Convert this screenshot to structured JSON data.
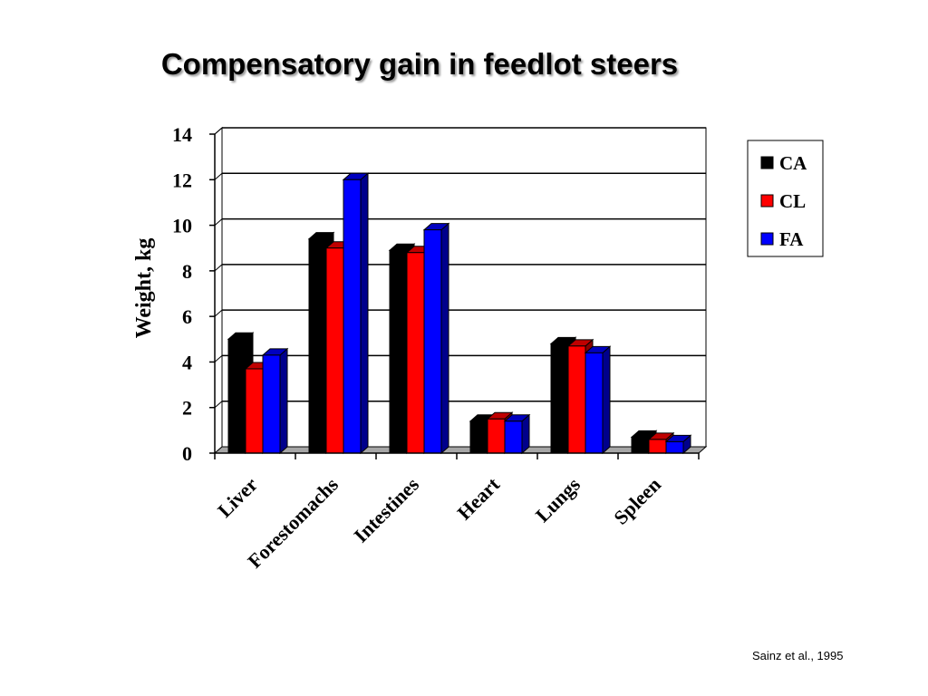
{
  "slide": {
    "title": "Compensatory gain in feedlot steers",
    "citation": "Sainz et al., 1995"
  },
  "chart_data": {
    "type": "bar",
    "title": "",
    "xlabel": "",
    "ylabel": "Weight, kg",
    "categories": [
      "Liver",
      "Forestomachs",
      "Intestines",
      "Heart",
      "Lungs",
      "Spleen"
    ],
    "series": [
      {
        "name": "CA",
        "color": "#000000",
        "values": [
          5.0,
          9.4,
          8.9,
          1.4,
          4.8,
          0.7
        ]
      },
      {
        "name": "CL",
        "color": "#ff0000",
        "values": [
          3.7,
          9.0,
          8.8,
          1.5,
          4.7,
          0.6
        ]
      },
      {
        "name": "FA",
        "color": "#0000ff",
        "values": [
          4.3,
          12.0,
          9.8,
          1.4,
          4.4,
          0.5
        ]
      }
    ],
    "ylim": [
      0,
      14
    ],
    "yticks": [
      0,
      2,
      4,
      6,
      8,
      10,
      12,
      14
    ],
    "grid": true,
    "legend_position": "right",
    "style": "3d-clustered-column"
  }
}
